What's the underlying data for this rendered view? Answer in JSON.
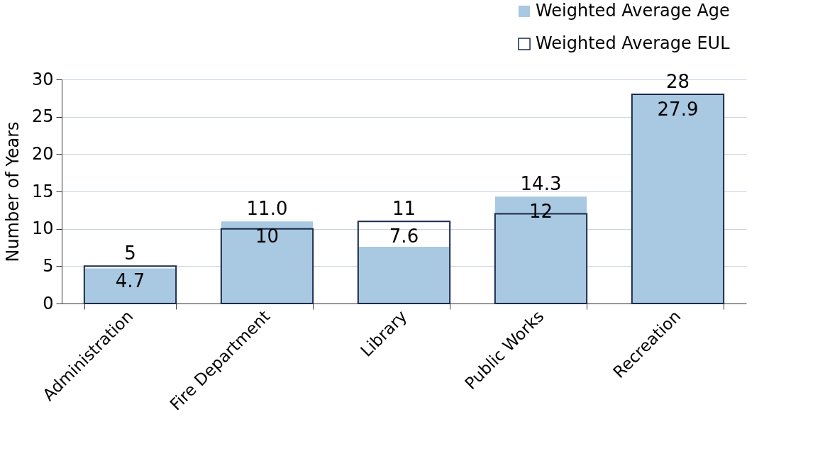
{
  "chart_data": {
    "type": "bar",
    "ylabel": "Number of Years",
    "categories": [
      "Administration",
      "Fire Department",
      "Library",
      "Public Works",
      "Recreation"
    ],
    "series": [
      {
        "name": "Weighted Average Age",
        "color": "#a9c8e2",
        "values": [
          4.7,
          11.0,
          7.6,
          14.3,
          27.9
        ],
        "value_labels": [
          "4.7",
          "11.0",
          "7.6",
          "14.3",
          "27.9"
        ]
      },
      {
        "name": "Weighted Average EUL",
        "color": "#1b2a4a",
        "values": [
          5,
          10,
          11,
          12,
          28
        ],
        "value_labels": [
          "5",
          "10",
          "11",
          "12",
          "28"
        ]
      }
    ],
    "ylim": [
      0,
      30
    ],
    "yticks": [
      0,
      5,
      10,
      15,
      20,
      25,
      30
    ],
    "grid": "y",
    "legend": "top right"
  }
}
